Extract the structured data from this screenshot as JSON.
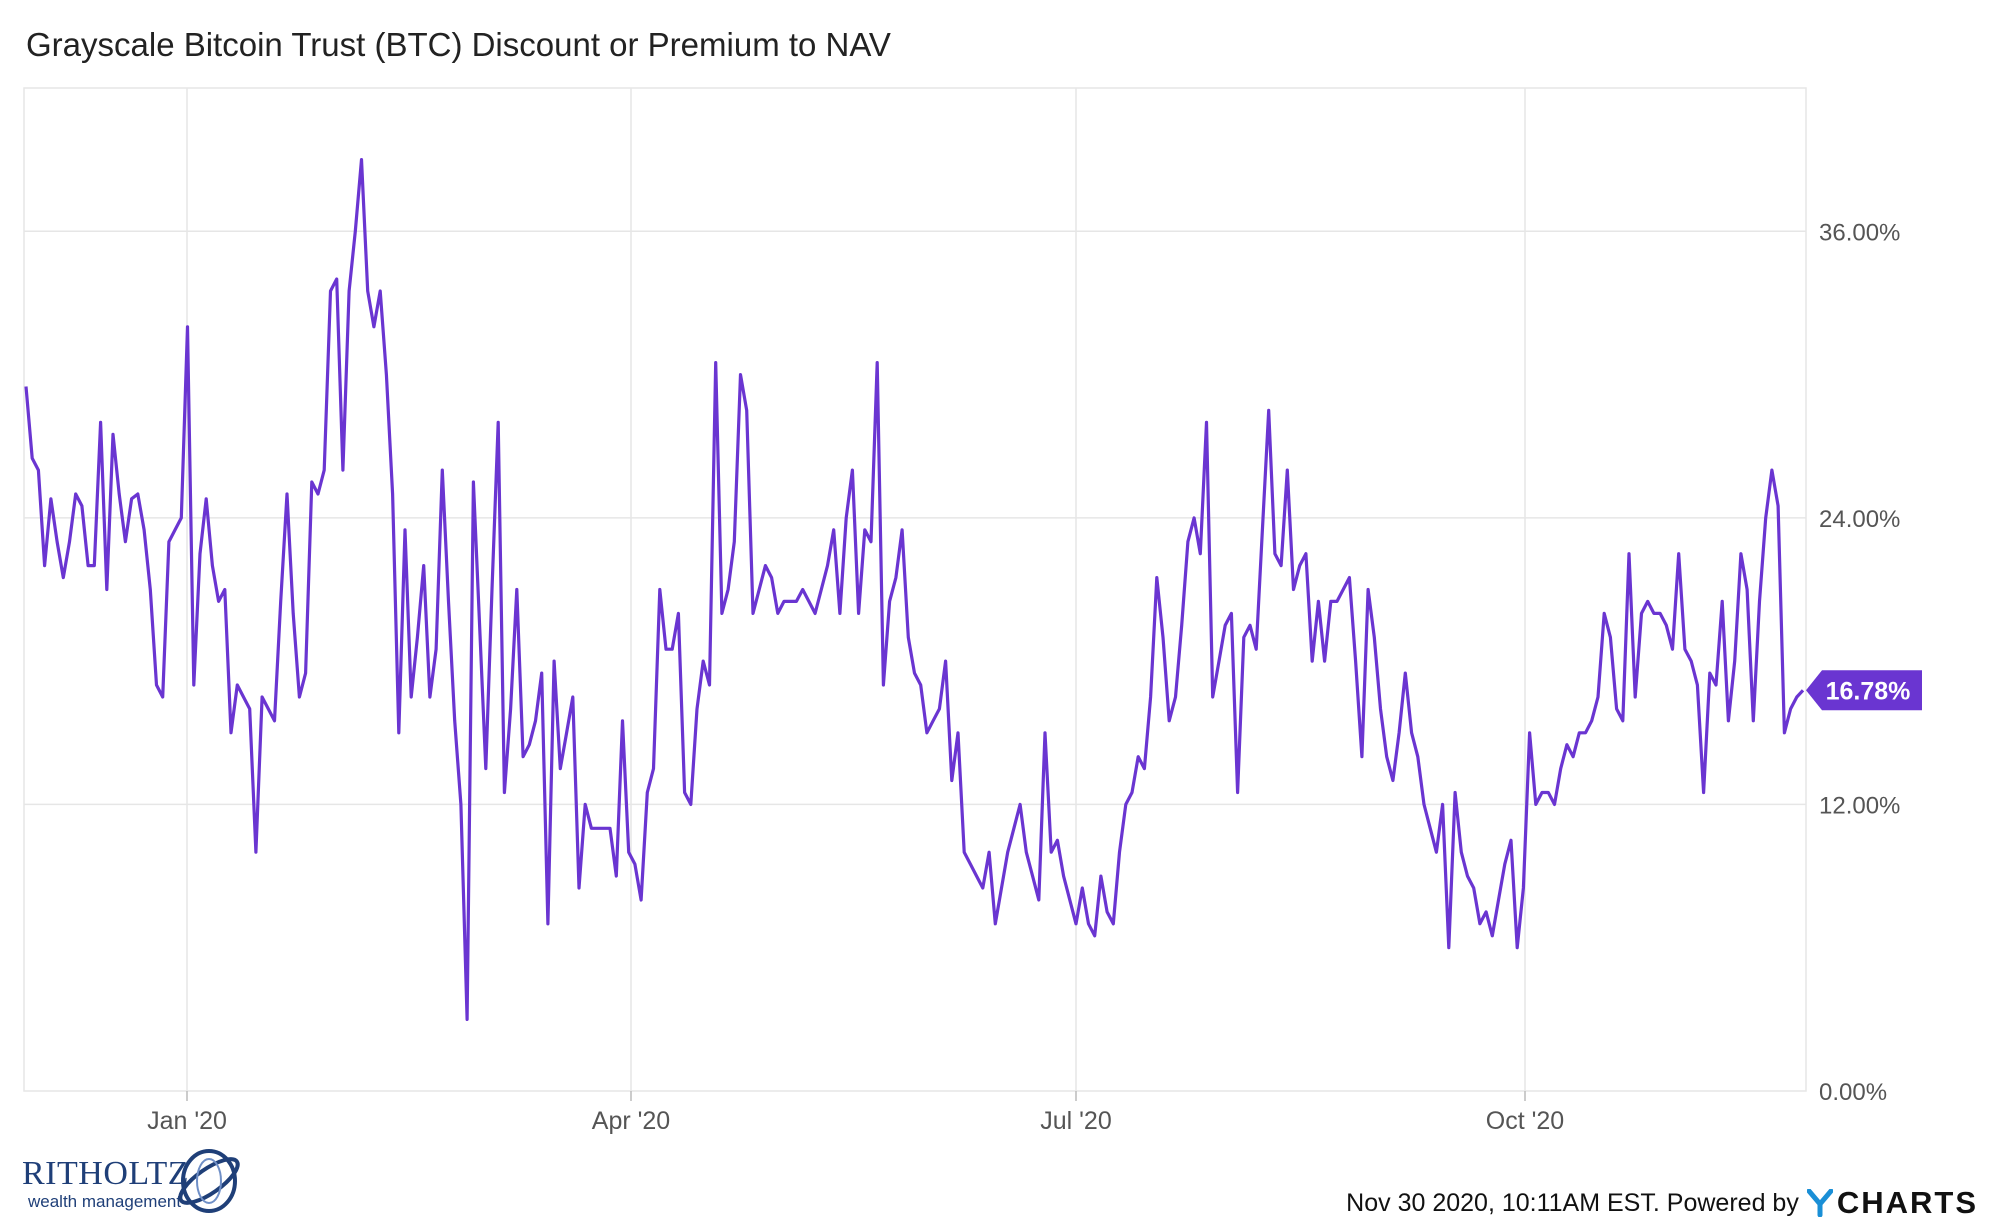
{
  "title": "Grayscale Bitcoin Trust (BTC) Discount or Premium to NAV",
  "footer": {
    "timestamp": "Nov 30 2020, 10:11AM EST.",
    "powered_by": "Powered by",
    "ycharts_logo": "YCHARTS",
    "ritholtz_logo": "RITHOLTZ",
    "ritholtz_sub": "wealth management"
  },
  "colors": {
    "line": "#6a35d1",
    "grid": "#e6e6e6",
    "axis_text": "#555555",
    "badge_bg": "#6a35d1",
    "badge_text": "#ffffff"
  },
  "chart_data": {
    "type": "line",
    "title": "Grayscale Bitcoin Trust (BTC) Discount or Premium to NAV",
    "xlabel": "",
    "ylabel": "",
    "x_ticks": [
      "Jan '20",
      "Apr '20",
      "Jul '20",
      "Oct '20"
    ],
    "y_ticks": [
      "0.00%",
      "12.00%",
      "24.00%",
      "36.00%"
    ],
    "ylim": [
      0,
      42
    ],
    "grid": true,
    "y_axis_side": "right",
    "last_value_label": "16.78%",
    "series": [
      {
        "values": [
          29.5,
          26.5,
          26.0,
          22.0,
          24.8,
          23.0,
          21.5,
          23.0,
          25.0,
          24.5,
          22.0,
          22.0,
          28.0,
          21.0,
          27.5,
          25.0,
          23.0,
          24.8,
          25.0,
          23.5,
          21.0,
          17.0,
          16.5,
          23.0,
          23.5,
          24.0,
          32.0,
          17.0,
          22.5,
          24.8,
          22.0,
          20.5,
          21.0,
          15.0,
          17.0,
          16.5,
          16.0,
          10.0,
          16.5,
          16.0,
          15.5,
          20.5,
          25.0,
          20.0,
          16.5,
          17.5,
          25.5,
          25.0,
          26.0,
          33.5,
          34.0,
          26.0,
          33.5,
          36.0,
          39.0,
          33.5,
          32.0,
          33.5,
          30.0,
          25.0,
          15.0,
          23.5,
          16.5,
          19.0,
          22.0,
          16.5,
          18.5,
          26.0,
          20.5,
          15.5,
          12.0,
          3.0,
          25.5,
          19.5,
          13.5,
          21.0,
          28.0,
          12.5,
          16.0,
          21.0,
          14.0,
          14.5,
          15.5,
          17.5,
          7.0,
          18.0,
          13.5,
          15.0,
          16.5,
          8.5,
          12.0,
          11.0,
          11.0,
          11.0,
          11.0,
          9.0,
          15.5,
          10.0,
          9.5,
          8.0,
          12.5,
          13.5,
          21.0,
          18.5,
          18.5,
          20.0,
          12.5,
          12.0,
          16.0,
          18.0,
          17.0,
          30.5,
          20.0,
          21.0,
          23.0,
          30.0,
          28.5,
          20.0,
          21.0,
          22.0,
          21.5,
          20.0,
          20.5,
          20.5,
          20.5,
          21.0,
          20.5,
          20.0,
          21.0,
          22.0,
          23.5,
          20.0,
          24.0,
          26.0,
          20.0,
          23.5,
          23.0,
          30.5,
          17.0,
          20.5,
          21.5,
          23.5,
          19.0,
          17.5,
          17.0,
          15.0,
          15.5,
          16.0,
          18.0,
          13.0,
          15.0,
          10.0,
          9.5,
          9.0,
          8.5,
          10.0,
          7.0,
          8.5,
          10.0,
          11.0,
          12.0,
          10.0,
          9.0,
          8.0,
          15.0,
          10.0,
          10.5,
          9.0,
          8.0,
          7.0,
          8.5,
          7.0,
          6.5,
          9.0,
          7.5,
          7.0,
          10.0,
          12.0,
          12.5,
          14.0,
          13.5,
          16.5,
          21.5,
          19.0,
          15.5,
          16.5,
          19.5,
          23.0,
          24.0,
          22.5,
          28.0,
          16.5,
          18.0,
          19.5,
          20.0,
          12.5,
          19.0,
          19.5,
          18.5,
          23.5,
          28.5,
          22.5,
          22.0,
          26.0,
          21.0,
          22.0,
          22.5,
          18.0,
          20.5,
          18.0,
          20.5,
          20.5,
          21.0,
          21.5,
          18.0,
          14.0,
          21.0,
          19.0,
          16.0,
          14.0,
          13.0,
          15.0,
          17.5,
          15.0,
          14.0,
          12.0,
          11.0,
          10.0,
          12.0,
          6.0,
          12.5,
          10.0,
          9.0,
          8.5,
          7.0,
          7.5,
          6.5,
          8.0,
          9.5,
          10.5,
          6.0,
          8.5,
          15.0,
          12.0,
          12.5,
          12.5,
          12.0,
          13.5,
          14.5,
          14.0,
          15.0,
          15.0,
          15.5,
          16.5,
          20.0,
          19.0,
          16.0,
          15.5,
          22.5,
          16.5,
          20.0,
          20.5,
          20.0,
          20.0,
          19.5,
          18.5,
          22.5,
          18.5,
          18.0,
          17.0,
          12.5,
          17.5,
          17.0,
          20.5,
          15.5,
          18.0,
          22.5,
          21.0,
          15.5,
          20.5,
          24.0,
          26.0,
          24.5,
          15.0,
          16.0,
          16.5,
          16.78
        ]
      }
    ]
  }
}
